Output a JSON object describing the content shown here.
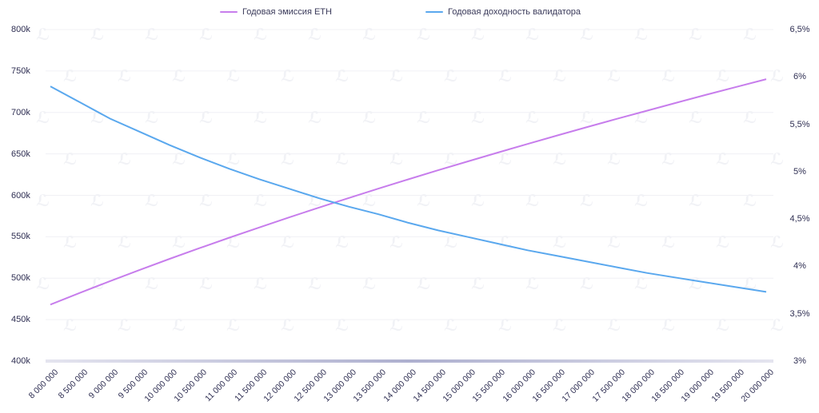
{
  "legend": [
    {
      "label": "Годовая эмиссия ETH",
      "color": "#c77dec"
    },
    {
      "label": "Годовая доходность валидатора",
      "color": "#5aa8ee"
    }
  ],
  "chart_data": {
    "type": "line",
    "title": "",
    "xlabel": "",
    "ylabel": "",
    "ylabel_right": "",
    "x": [
      "8 000 000",
      "8 500 000",
      "9 000 000",
      "9 500 000",
      "10 000 000",
      "10 500 000",
      "11 000 000",
      "11 500 000",
      "12 000 000",
      "12 500 000",
      "13 000 000",
      "13 500 000",
      "14 000 000",
      "14 500 000",
      "15 000 000",
      "15 500 000",
      "16 000 000",
      "16 500 000",
      "17 000 000",
      "17 500 000",
      "18 000 000",
      "18 500 000",
      "19 000 000",
      "19 500 000",
      "20 000 000"
    ],
    "series": [
      {
        "name": "Годовая эмиссия ETH",
        "axis": "left",
        "color": "#c77dec",
        "values": [
          468100,
          482500,
          496500,
          510100,
          523400,
          536300,
          548900,
          561200,
          573300,
          585200,
          596700,
          608100,
          619300,
          630300,
          641000,
          651600,
          662000,
          672300,
          682400,
          692300,
          702100,
          711800,
          721400,
          730800,
          740100
        ]
      },
      {
        "name": "Годовая доходность валидатора",
        "axis": "right",
        "color": "#5aa8ee",
        "values": [
          5.9,
          5.73,
          5.56,
          5.42,
          5.28,
          5.15,
          5.03,
          4.92,
          4.82,
          4.72,
          4.63,
          4.55,
          4.46,
          4.38,
          4.31,
          4.24,
          4.17,
          4.11,
          4.05,
          3.99,
          3.93,
          3.88,
          3.83,
          3.78,
          3.73
        ]
      }
    ],
    "ylim": [
      400000,
      800000
    ],
    "ylim_right": [
      3,
      6.5
    ],
    "yticks_left": [
      "800k",
      "750k",
      "700k",
      "650k",
      "600k",
      "550k",
      "500k",
      "450k",
      "400k"
    ],
    "yticks_right": [
      "6,5%",
      "6%",
      "5,5%",
      "5%",
      "4,5%",
      "4%",
      "3,5%",
      "3%"
    ],
    "grid": true,
    "legend_position": "top"
  }
}
